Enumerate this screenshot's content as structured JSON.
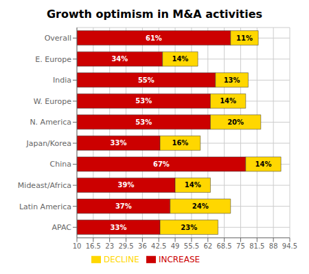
{
  "chart_data": {
    "type": "bar",
    "title": "Growth optimism in M&A activities",
    "orientation": "horizontal",
    "stacked": true,
    "categories": [
      "Overall",
      "E. Europe",
      "India",
      "W. Europe",
      "N. America",
      "Japan/Korea",
      "China",
      "Mideast/Africa",
      "Latin America",
      "APAC"
    ],
    "bar_start": 10,
    "series": [
      {
        "name": "INCREASE",
        "color": "#CC0000",
        "values": [
          61,
          34,
          55,
          53,
          53,
          33,
          67,
          39,
          37,
          33
        ],
        "value_labels": [
          "61%",
          "34%",
          "55%",
          "53%",
          "53%",
          "33%",
          "67%",
          "39%",
          "37%",
          "33%"
        ]
      },
      {
        "name": "DECLINE",
        "color": "#FFD700",
        "values": [
          11,
          14,
          13,
          14,
          20,
          16,
          14,
          14,
          24,
          23
        ],
        "value_labels": [
          "11%",
          "14%",
          "13%",
          "14%",
          "20%",
          "16%",
          "14%",
          "14%",
          "24%",
          "23%"
        ]
      }
    ],
    "xlim": [
      10,
      94.5
    ],
    "xticks": [
      10,
      16.5,
      23,
      29.5,
      36,
      42.5,
      49,
      55.5,
      62,
      68.5,
      75,
      81.5,
      88,
      94.5
    ],
    "grid": true,
    "legend": "bottom",
    "data_labels": true
  }
}
